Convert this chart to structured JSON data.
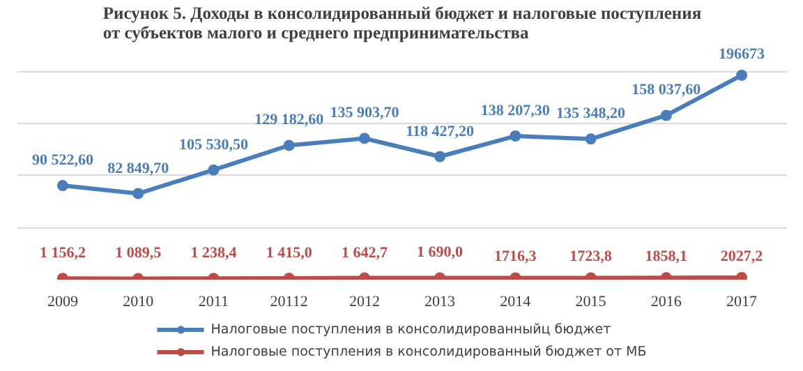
{
  "chart_data": {
    "type": "line",
    "title": "Рисунок 5. Доходы в консолидированный бюджет и налоговые поступления от субъектов малого и среднего предпринимательства",
    "categories": [
      "2009",
      "2010",
      "2011",
      "20112",
      "2012",
      "2013",
      "2014",
      "2015",
      "2016",
      "2017"
    ],
    "series": [
      {
        "name": "Налоговые поступления в консолидированныйц бюджет",
        "color": "#4a7ebb",
        "values": [
          90522.6,
          82849.7,
          105530.5,
          129182.6,
          135903.7,
          118427.2,
          138207.3,
          135348.2,
          158037.6,
          196673
        ],
        "value_labels": [
          "90 522,60",
          "82 849,70",
          "105 530,50",
          "129 182,60",
          "135 903,70",
          "118 427,20",
          "138 207,30",
          "135 348,20",
          "158 037,60",
          "196673"
        ]
      },
      {
        "name": "Налоговые поступления в консолидированный бюджет от МБ",
        "color": "#be4b48",
        "values": [
          1156.2,
          1089.5,
          1238.4,
          1415.0,
          1642.7,
          1690.0,
          1716.3,
          1723.8,
          1858.1,
          2027.2
        ],
        "value_labels": [
          "1 156,2",
          "1 089,5",
          "1 238,4",
          "1 415,0",
          "1 642,7",
          "1 690,0",
          "1716,3",
          "1723,8",
          "1858,1",
          "2027,2"
        ]
      }
    ],
    "grid": "y",
    "legend": "bottom",
    "marker": "circle",
    "line_style": "solid",
    "tick_labels": "x"
  }
}
